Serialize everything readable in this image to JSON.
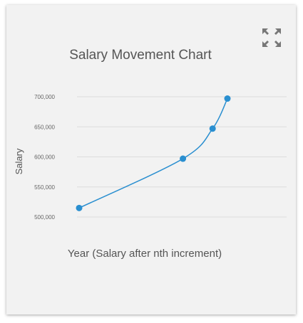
{
  "chart_data": {
    "type": "line",
    "title": "Salary Movement Chart",
    "xlabel": "Year (Salary after nth increment)",
    "ylabel": "Salary",
    "ylim": [
      480000,
      710000
    ],
    "y_ticks": [
      500000,
      550000,
      600000,
      650000,
      700000
    ],
    "y_tick_labels": [
      "500,000",
      "550,000",
      "600,000",
      "650,000",
      "700,000"
    ],
    "x_range": [
      0,
      10
    ],
    "grid": true,
    "series": [
      {
        "color": "#2a8fd0",
        "points": [
          {
            "x": 0,
            "y": 515000
          },
          {
            "x": 7,
            "y": 597000
          },
          {
            "x": 9,
            "y": 647000
          },
          {
            "x": 10,
            "y": 697000
          }
        ]
      }
    ]
  },
  "icons": {
    "expand": "expand-arrows-icon"
  }
}
